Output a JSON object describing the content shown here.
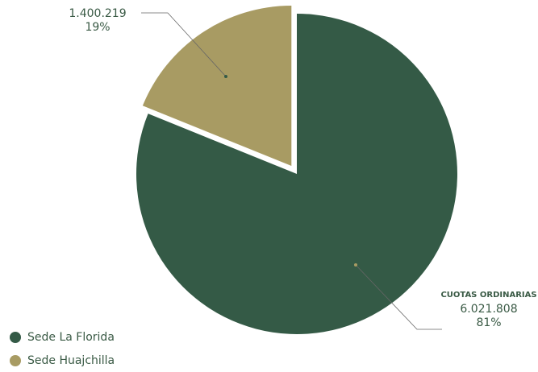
{
  "chart_data": {
    "type": "pie",
    "slices": [
      {
        "name": "Sede La Florida",
        "value": 6021808,
        "value_label": "6.021.808",
        "percent_label": "81%",
        "annotation_title": "CUOTAS ORDINARIAS",
        "color": "#345a46"
      },
      {
        "name": "Sede Huajchilla",
        "value": 1400219,
        "value_label": "1.400.219",
        "percent_label": "19%",
        "annotation_title": "",
        "color": "#a89b63"
      }
    ],
    "legend": {
      "placement": "bottom-left",
      "items": [
        {
          "label": "Sede La Florida",
          "color": "#345a46"
        },
        {
          "label": "Sede Huajchilla",
          "color": "#a89b63"
        }
      ]
    }
  }
}
